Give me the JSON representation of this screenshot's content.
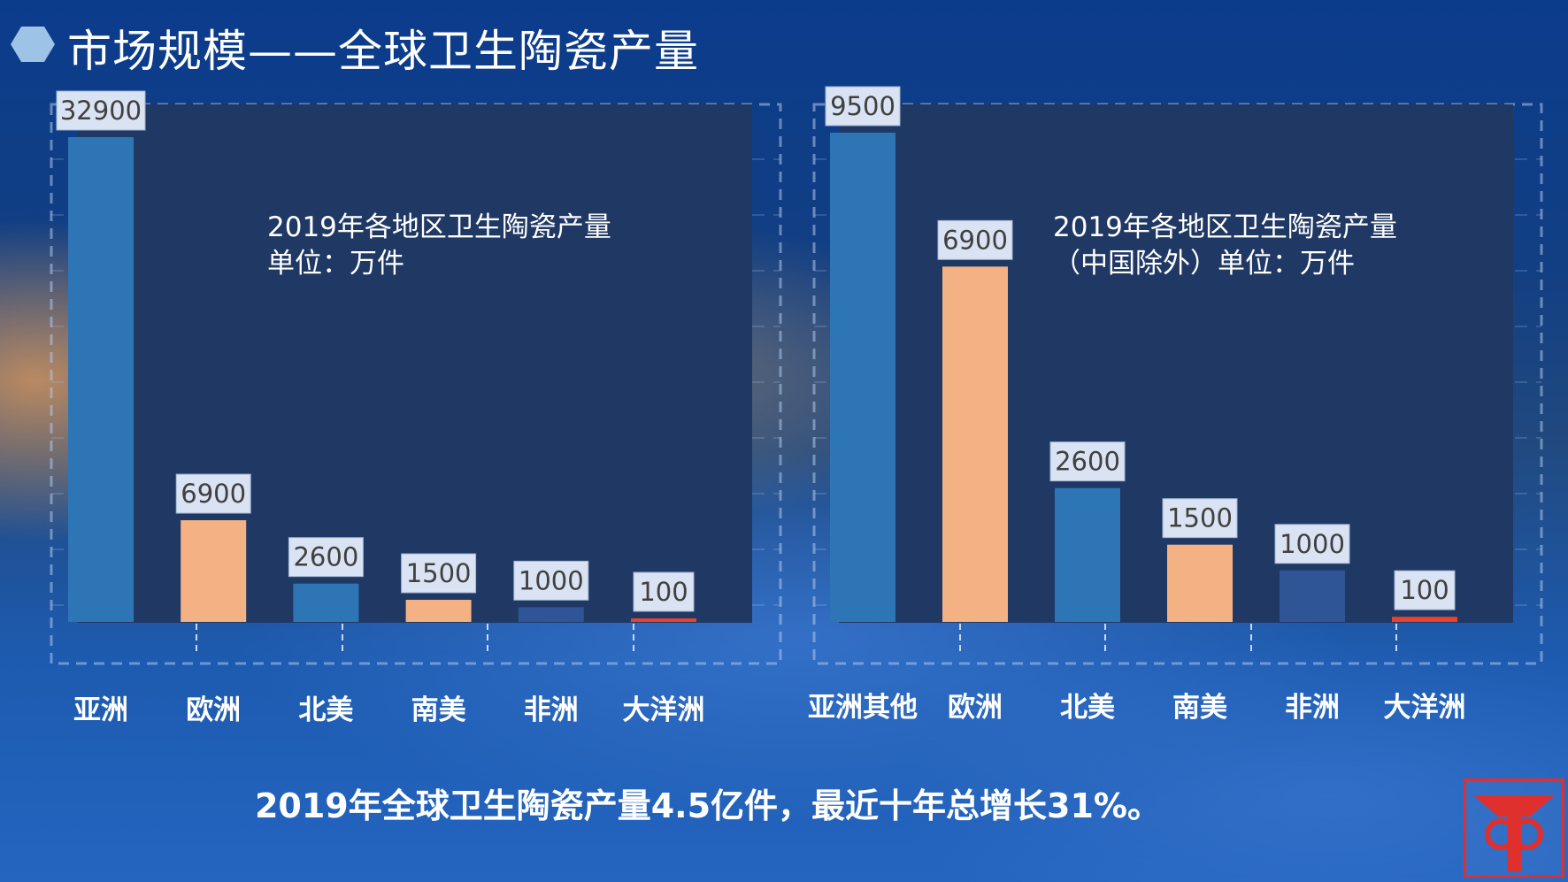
{
  "slide": {
    "title": "市场规模——全球卫生陶瓷产量",
    "summary": "2019年全球卫生陶瓷产量4.5亿件，最近十年总增长31%。"
  },
  "colors": {
    "blue_bar": "#2e75b6",
    "salmon_bar": "#f4b183",
    "dark_bar": "#2f5597",
    "red_bar": "#e8432e",
    "plot_bg": "#203864",
    "label_box": "#dae3f3",
    "label_text": "#404040",
    "accent_hex": "#9dc3e6",
    "logo_red": "#e0302e"
  },
  "chart_data": [
    {
      "type": "bar",
      "title_lines": [
        "2019年各地区卫生陶瓷产量",
        "单位：万件"
      ],
      "categories": [
        "亚洲",
        "欧洲",
        "北美",
        "南美",
        "非洲",
        "大洋洲"
      ],
      "values": [
        32900,
        6900,
        2600,
        1500,
        1000,
        100
      ],
      "data_labels": [
        "32900",
        "6900",
        "2600",
        "1500",
        "1000",
        "100"
      ],
      "bar_colors": [
        "#2e75b6",
        "#f4b183",
        "#2e75b6",
        "#f4b183",
        "#2f5597",
        "#e8432e"
      ],
      "ylim": [
        0,
        32900
      ],
      "grid": false,
      "xlabel": "",
      "ylabel": ""
    },
    {
      "type": "bar",
      "title_lines": [
        "2019年各地区卫生陶瓷产量",
        "（中国除外）单位：万件"
      ],
      "categories": [
        "亚洲其他",
        "欧洲",
        "北美",
        "南美",
        "非洲",
        "大洋洲"
      ],
      "values": [
        9500,
        6900,
        2600,
        1500,
        1000,
        100
      ],
      "data_labels": [
        "9500",
        "6900",
        "2600",
        "1500",
        "1000",
        "100"
      ],
      "bar_colors": [
        "#2e75b6",
        "#f4b183",
        "#2e75b6",
        "#f4b183",
        "#2f5597",
        "#e8432e"
      ],
      "ylim": [
        0,
        9500
      ],
      "grid": false,
      "xlabel": "",
      "ylabel": ""
    }
  ],
  "logo": {
    "name": "company-logo-icon"
  }
}
